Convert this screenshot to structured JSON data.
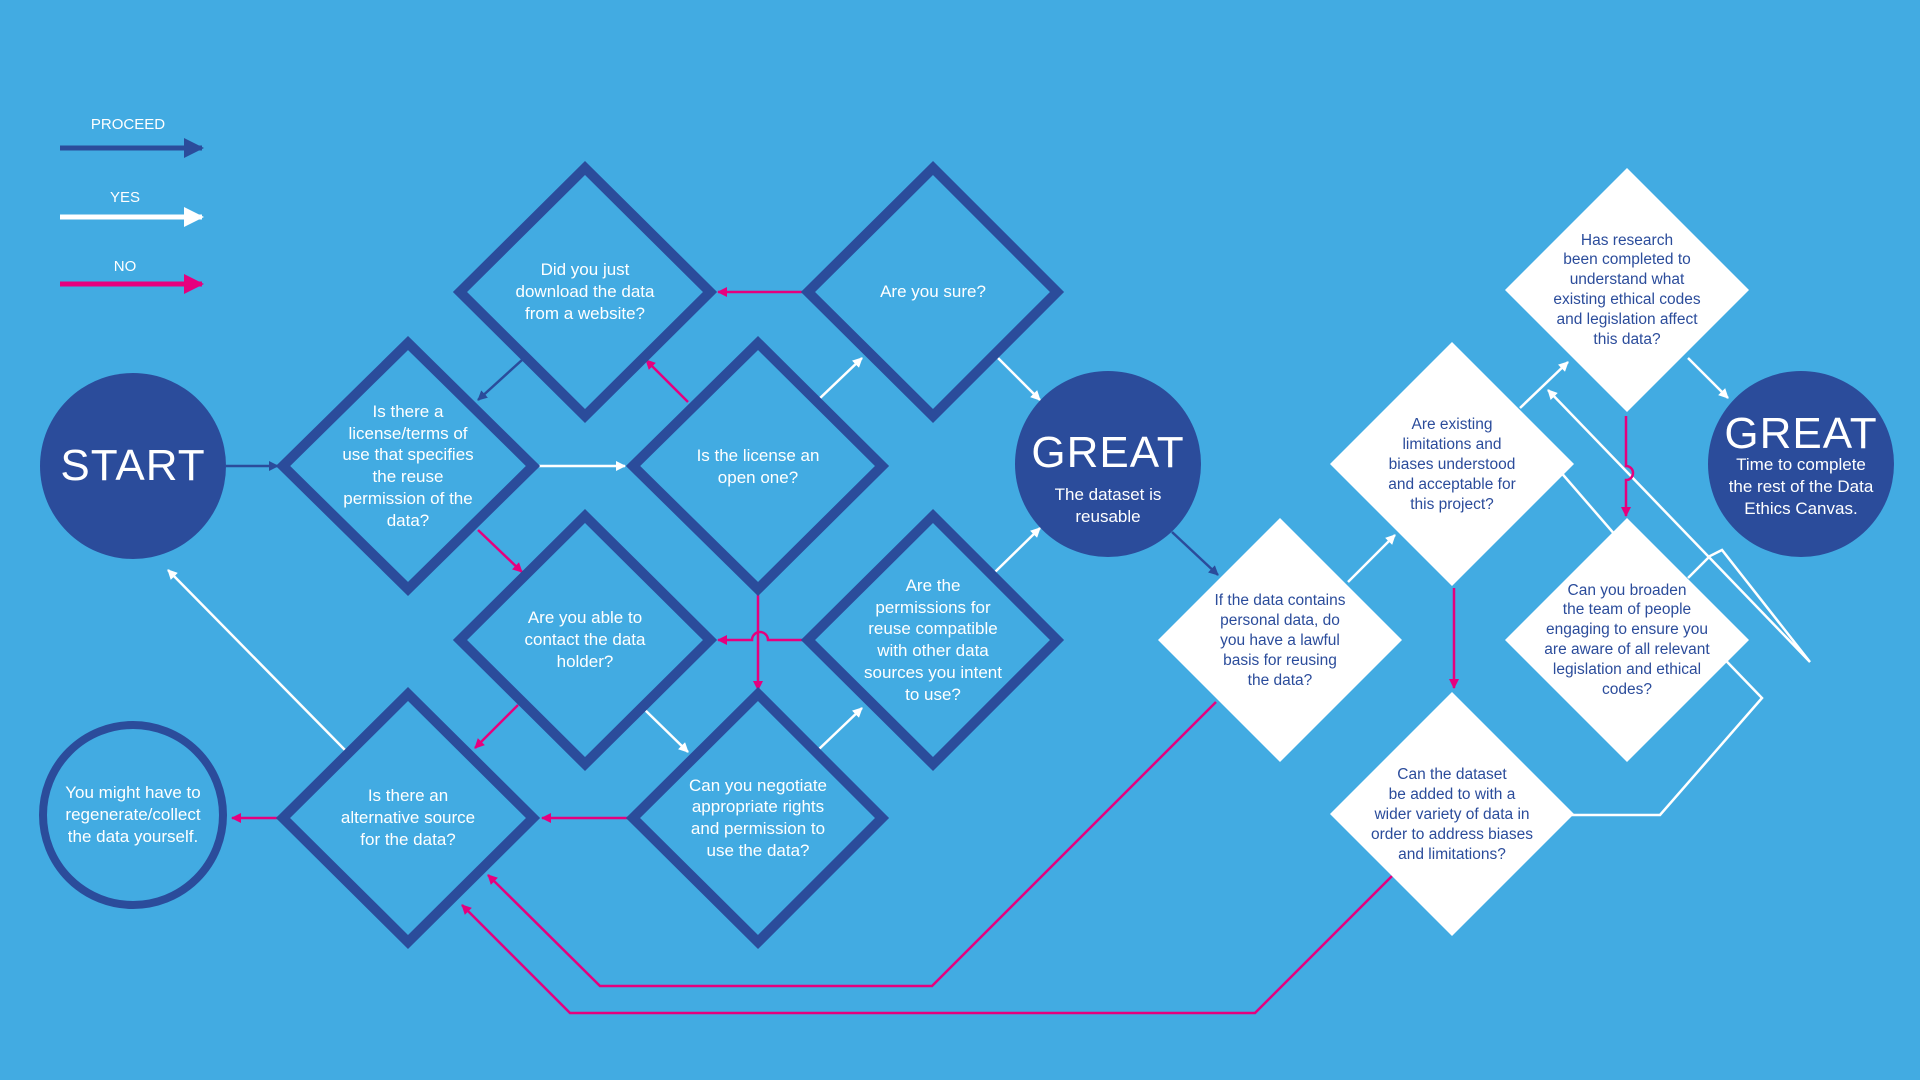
{
  "colors": {
    "background": "#42ABE2",
    "dark_blue": "#2B4C9B",
    "white": "#FFFFFF",
    "magenta": "#E6007E"
  },
  "legend": {
    "proceed": "PROCEED",
    "yes": "YES",
    "no": "NO"
  },
  "nodes": {
    "start": "START",
    "q_license_terms": "Is there a\nlicense/terms of\nuse that specifies\nthe reuse\npermission of the\ndata?",
    "q_download": "Did you just\ndownload the data\nfrom a website?",
    "q_sure": "Are you sure?",
    "q_open_license": "Is the license an\nopen one?",
    "q_contact_holder": "Are you able to\ncontact the data\nholder?",
    "q_permissions_compatible": "Are the\npermissions for\nreuse compatible\nwith other data\nsources you intent\nto use?",
    "q_negotiate": "Can you negotiate\nappropriate rights\nand permission to\nuse the data?",
    "q_alternative_source": "Is there an\nalternative source\nfor the data?",
    "end_regenerate": "You might have to\nregenerate/collect\nthe data yourself.",
    "great1_title": "GREAT",
    "great1_text": "The dataset is\nreusable",
    "q_personal_data": "If the data contains\npersonal data, do\nyou have a lawful\nbasis for reusing\nthe  data?",
    "q_limitations": "Are existing\nlimitations and\nbiases understood\nand acceptable for\nthis project?",
    "q_research": "Has research\nbeen completed to\nunderstand what\nexisting ethical codes\nand legislation affect\nthis data?",
    "q_broaden_team": "Can you broaden\nthe team of people\nengaging to ensure you\nare aware of all relevant\nlegislation and ethical\ncodes?",
    "q_add_data": "Can the dataset\nbe added to with a\nwider variety of data in\norder to address biases\nand limitations?",
    "great2_title": "GREAT",
    "great2_text": "Time to complete\nthe rest of the Data\nEthics Canvas."
  }
}
